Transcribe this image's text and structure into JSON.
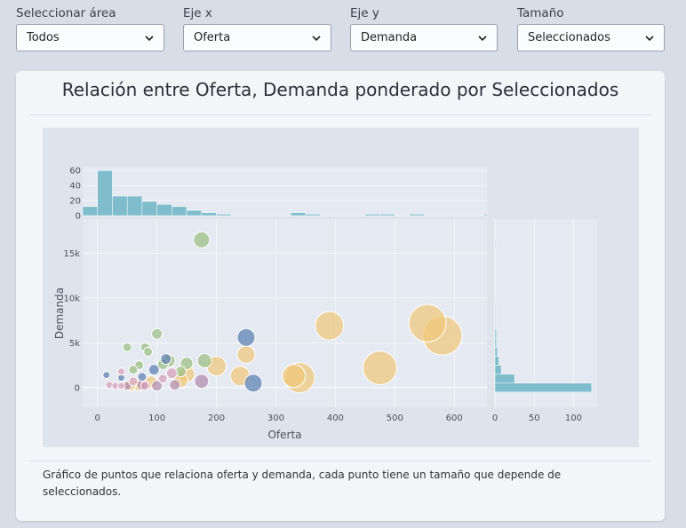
{
  "filters": [
    {
      "label": "Seleccionar área",
      "value": "Todos"
    },
    {
      "label": "Eje x",
      "value": "Oferta"
    },
    {
      "label": "Eje y",
      "value": "Demanda"
    },
    {
      "label": "Tamaño",
      "value": "Seleccionados"
    }
  ],
  "card": {
    "title": "Relación entre Oferta, Demanda ponderado por Seleccionados",
    "caption": "Gráfico de puntos que relaciona oferta y demanda, cada punto tiene un tamaño que depende de seleccionados."
  },
  "colors": {
    "page_bg": "#d9dde8",
    "plot_bg": "#e5e9f2",
    "histogram": "#7fbccc",
    "blue": "#5b7fb0",
    "green": "#9bbf82",
    "orange": "#f0c87a",
    "purple": "#b18aaf",
    "pink": "#d6a0b8"
  },
  "chart_data": [
    {
      "type": "scatter",
      "xlabel": "Oferta",
      "ylabel": "Demanda",
      "xlim": [
        -25,
        655
      ],
      "ylim": [
        -2200,
        18800
      ],
      "x_ticks": [
        0,
        100,
        200,
        300,
        400,
        500,
        600
      ],
      "y_ticks": [
        0,
        5000,
        10000,
        15000
      ],
      "y_tick_labels": [
        "0",
        "5k",
        "10k",
        "15k"
      ],
      "grid": true,
      "points": [
        {
          "x": 175,
          "y": 16500,
          "size": 9,
          "color": "green"
        },
        {
          "x": 555,
          "y": 7200,
          "size": 21,
          "color": "orange"
        },
        {
          "x": 580,
          "y": 5800,
          "size": 22,
          "color": "orange"
        },
        {
          "x": 390,
          "y": 6900,
          "size": 16,
          "color": "orange"
        },
        {
          "x": 475,
          "y": 2200,
          "size": 19,
          "color": "orange"
        },
        {
          "x": 340,
          "y": 1100,
          "size": 17,
          "color": "orange"
        },
        {
          "x": 330,
          "y": 1300,
          "size": 13,
          "color": "orange"
        },
        {
          "x": 240,
          "y": 1300,
          "size": 11,
          "color": "orange"
        },
        {
          "x": 250,
          "y": 3700,
          "size": 10,
          "color": "orange"
        },
        {
          "x": 200,
          "y": 2400,
          "size": 11,
          "color": "orange"
        },
        {
          "x": 250,
          "y": 5600,
          "size": 10,
          "color": "blue"
        },
        {
          "x": 262,
          "y": 500,
          "size": 10,
          "color": "blue"
        },
        {
          "x": 100,
          "y": 6000,
          "size": 6,
          "color": "green"
        },
        {
          "x": 180,
          "y": 3000,
          "size": 8,
          "color": "green"
        },
        {
          "x": 150,
          "y": 2700,
          "size": 7,
          "color": "green"
        },
        {
          "x": 120,
          "y": 3000,
          "size": 7,
          "color": "green"
        },
        {
          "x": 80,
          "y": 4500,
          "size": 5,
          "color": "green"
        },
        {
          "x": 50,
          "y": 4500,
          "size": 5,
          "color": "green"
        },
        {
          "x": 85,
          "y": 4000,
          "size": 5,
          "color": "green"
        },
        {
          "x": 70,
          "y": 2500,
          "size": 5,
          "color": "green"
        },
        {
          "x": 60,
          "y": 2000,
          "size": 5,
          "color": "green"
        },
        {
          "x": 110,
          "y": 2600,
          "size": 6,
          "color": "green"
        },
        {
          "x": 140,
          "y": 1800,
          "size": 6,
          "color": "green"
        },
        {
          "x": 115,
          "y": 3200,
          "size": 6,
          "color": "blue"
        },
        {
          "x": 95,
          "y": 2000,
          "size": 6,
          "color": "blue"
        },
        {
          "x": 75,
          "y": 1200,
          "size": 5,
          "color": "blue"
        },
        {
          "x": 40,
          "y": 1100,
          "size": 4,
          "color": "blue"
        },
        {
          "x": 15,
          "y": 1400,
          "size": 4,
          "color": "blue"
        },
        {
          "x": 150,
          "y": 1500,
          "size": 9,
          "color": "orange"
        },
        {
          "x": 140,
          "y": 800,
          "size": 8,
          "color": "orange"
        },
        {
          "x": 90,
          "y": 600,
          "size": 7,
          "color": "orange"
        },
        {
          "x": 70,
          "y": 300,
          "size": 7,
          "color": "orange"
        },
        {
          "x": 55,
          "y": 200,
          "size": 6,
          "color": "orange"
        },
        {
          "x": 175,
          "y": 700,
          "size": 8,
          "color": "purple"
        },
        {
          "x": 130,
          "y": 300,
          "size": 6,
          "color": "purple"
        },
        {
          "x": 100,
          "y": 200,
          "size": 6,
          "color": "purple"
        },
        {
          "x": 75,
          "y": 300,
          "size": 6,
          "color": "purple"
        },
        {
          "x": 50,
          "y": 200,
          "size": 5,
          "color": "purple"
        },
        {
          "x": 20,
          "y": 300,
          "size": 4,
          "color": "pink"
        },
        {
          "x": 30,
          "y": 200,
          "size": 4,
          "color": "pink"
        },
        {
          "x": 40,
          "y": 200,
          "size": 4,
          "color": "pink"
        },
        {
          "x": 60,
          "y": 700,
          "size": 5,
          "color": "pink"
        },
        {
          "x": 80,
          "y": 200,
          "size": 5,
          "color": "pink"
        },
        {
          "x": 40,
          "y": 1800,
          "size": 4,
          "color": "pink"
        },
        {
          "x": 125,
          "y": 1600,
          "size": 6,
          "color": "pink"
        },
        {
          "x": 110,
          "y": 1000,
          "size": 5,
          "color": "pink"
        }
      ]
    },
    {
      "type": "bar",
      "role": "x-marginal-histogram",
      "bin_width": 25,
      "bin_start": -25,
      "ylim": [
        0,
        65
      ],
      "y_ticks": [
        0,
        20,
        40,
        60
      ],
      "values": [
        12,
        60,
        26,
        26,
        19,
        15,
        12,
        7,
        4,
        2,
        0,
        0,
        0,
        0,
        4,
        2,
        0,
        0,
        0,
        2,
        2,
        0,
        2,
        0,
        0,
        0,
        0,
        2,
        0,
        0,
        0,
        0,
        0,
        0,
        2,
        0
      ]
    },
    {
      "type": "bar",
      "role": "y-marginal-histogram",
      "orientation": "horizontal",
      "bin_width": 1000,
      "bin_start": -500,
      "xlim": [
        0,
        130
      ],
      "x_ticks": [
        0,
        50,
        100
      ],
      "values": [
        123,
        25,
        8,
        5,
        3,
        2,
        2,
        1,
        1,
        1,
        0,
        0,
        0,
        0,
        0,
        0,
        1,
        0,
        0
      ]
    }
  ]
}
